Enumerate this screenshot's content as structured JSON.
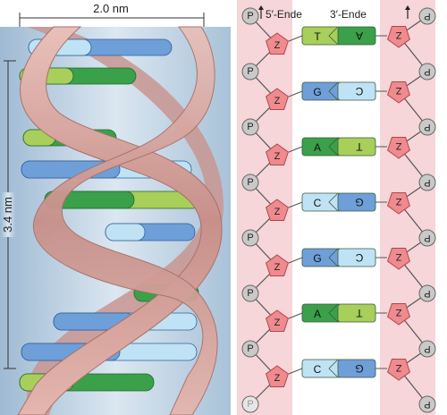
{
  "left_panel": {
    "width_label": "2.0 nm",
    "height_label": "3.4 nm"
  },
  "right_panel": {
    "strand_5_label": "5′-Ende",
    "strand_3_label": "3′-Ende",
    "phosphate_letter": "P",
    "sugar_letter": "Z",
    "pairs": [
      {
        "left": "T",
        "right": "A",
        "left_color": "#a8cf5a",
        "right_color": "#3aa04a"
      },
      {
        "left": "G",
        "right": "C",
        "left_color": "#6f9fd8",
        "right_color": "#bfe3f5"
      },
      {
        "left": "A",
        "right": "T",
        "left_color": "#3aa04a",
        "right_color": "#a8cf5a"
      },
      {
        "left": "C",
        "right": "G",
        "left_color": "#bfe3f5",
        "right_color": "#6f9fd8"
      },
      {
        "left": "G",
        "right": "C",
        "left_color": "#6f9fd8",
        "right_color": "#bfe3f5"
      },
      {
        "left": "A",
        "right": "T",
        "left_color": "#3aa04a",
        "right_color": "#a8cf5a"
      },
      {
        "left": "C",
        "right": "G",
        "left_color": "#bfe3f5",
        "right_color": "#6f9fd8"
      }
    ]
  },
  "colors": {
    "backbone_band": "#f6d6d8",
    "sugar_fill": "#ef8a8e",
    "phosphate_fill": "#c9c9c9",
    "ribbon": "#d9aaa3",
    "ribbon_dark": "#a8706a",
    "helix_bg": "#b9cfe2"
  }
}
